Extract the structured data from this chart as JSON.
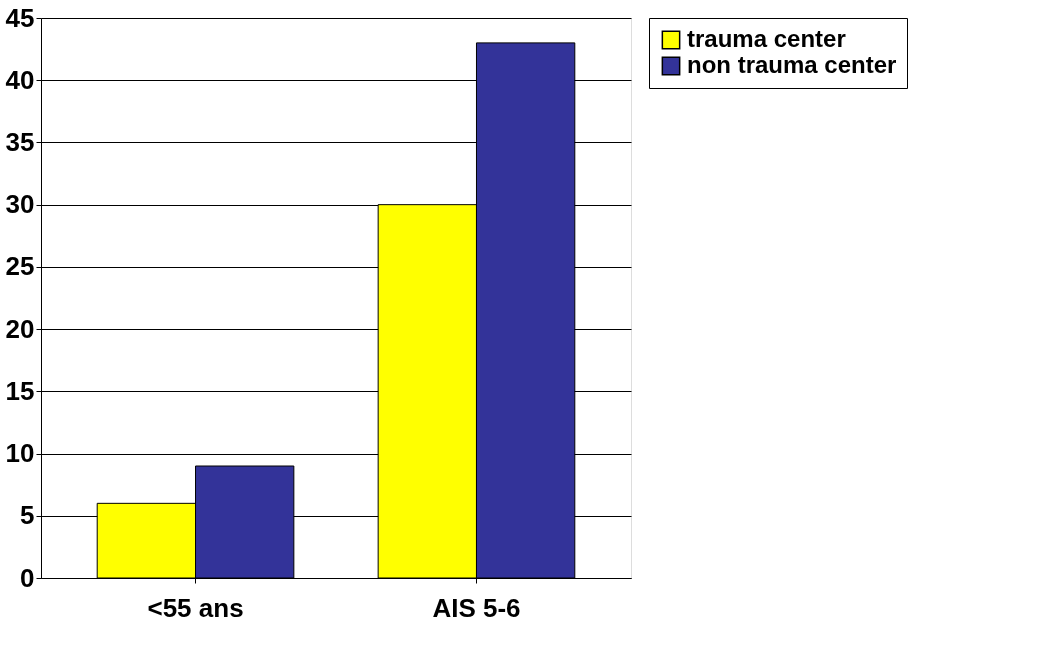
{
  "chart_data": {
    "type": "bar",
    "categories": [
      "<55 ans",
      "AIS 5-6"
    ],
    "series": [
      {
        "name": "trauma center",
        "color": "#ffff00",
        "values": [
          6,
          30
        ]
      },
      {
        "name": "non trauma center",
        "color": "#333399",
        "values": [
          9,
          43
        ]
      }
    ],
    "ylim": [
      0,
      45
    ],
    "yticks": [
      0,
      5,
      10,
      15,
      20,
      25,
      30,
      35,
      40,
      45
    ],
    "grid": "y",
    "legend": "right"
  }
}
